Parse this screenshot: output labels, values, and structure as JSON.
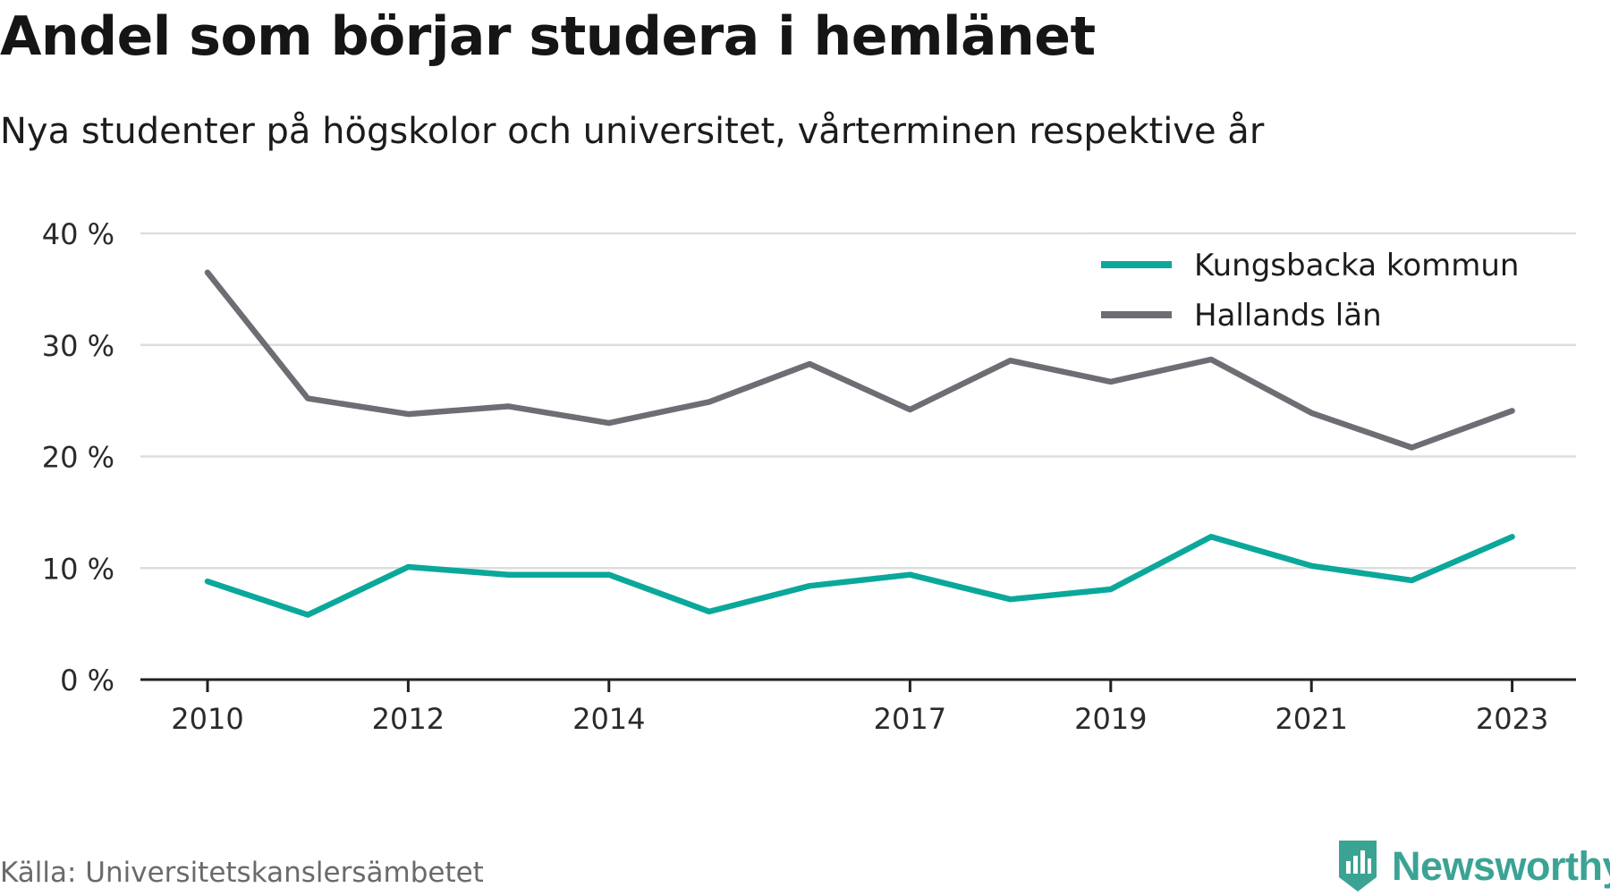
{
  "title": "Andel som börjar studera i hemlänet",
  "subtitle": "Nya studenter på högskolor och universitet, vårterminen respektive år",
  "source": "Källa: Universitetskanslersämbetet",
  "brand": {
    "name": "Newsworthy",
    "icon": "newsworthy-logo-icon",
    "color": "#3ba394"
  },
  "chart_data": {
    "type": "line",
    "x": [
      2010,
      2011,
      2012,
      2013,
      2014,
      2015,
      2016,
      2017,
      2018,
      2019,
      2020,
      2021,
      2022,
      2023
    ],
    "x_tick_labels": [
      "2010",
      "2012",
      "2014",
      "2017",
      "2019",
      "2021",
      "2023"
    ],
    "y_tick_labels": [
      "0 %",
      "10 %",
      "20 %",
      "30 %",
      "40 %"
    ],
    "ylim": [
      0,
      40
    ],
    "grid": true,
    "legend_position": "top-right",
    "series": [
      {
        "name": "Kungsbacka kommun",
        "color": "#0aa89a",
        "values": [
          8.8,
          5.8,
          10.1,
          9.4,
          9.4,
          6.1,
          8.4,
          9.4,
          7.2,
          8.1,
          12.8,
          10.2,
          8.9,
          12.8
        ]
      },
      {
        "name": "Hallands län",
        "color": "#6f6d74",
        "values": [
          36.5,
          25.2,
          23.8,
          24.5,
          23.0,
          24.9,
          28.3,
          24.2,
          28.6,
          26.7,
          28.7,
          23.9,
          20.8,
          24.1
        ]
      }
    ]
  }
}
